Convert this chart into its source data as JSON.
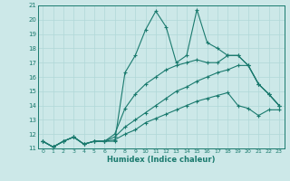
{
  "xlabel": "Humidex (Indice chaleur)",
  "ylabel": "",
  "xlim": [
    -0.5,
    23.5
  ],
  "ylim": [
    11,
    21
  ],
  "yticks": [
    11,
    12,
    13,
    14,
    15,
    16,
    17,
    18,
    19,
    20,
    21
  ],
  "xticks": [
    0,
    1,
    2,
    3,
    4,
    5,
    6,
    7,
    8,
    9,
    10,
    11,
    12,
    13,
    14,
    15,
    16,
    17,
    18,
    19,
    20,
    21,
    22,
    23
  ],
  "bg_color": "#cce8e8",
  "grid_color": "#b0d8d8",
  "line_color": "#1a7a6e",
  "lines": [
    {
      "x": [
        0,
        1,
        2,
        3,
        4,
        5,
        6,
        7,
        8,
        9,
        10,
        11,
        12,
        13,
        14,
        15,
        16,
        17,
        18,
        19,
        20,
        21,
        22,
        23
      ],
      "y": [
        11.5,
        11.1,
        11.5,
        11.8,
        11.3,
        11.5,
        11.5,
        11.5,
        16.3,
        17.5,
        19.3,
        20.6,
        19.5,
        17.0,
        17.5,
        20.7,
        18.4,
        18.0,
        17.5,
        17.5,
        16.8,
        15.5,
        14.8,
        14.0
      ]
    },
    {
      "x": [
        0,
        1,
        2,
        3,
        4,
        5,
        6,
        7,
        8,
        9,
        10,
        11,
        12,
        13,
        14,
        15,
        16,
        17,
        18,
        19,
        20,
        21,
        22,
        23
      ],
      "y": [
        11.5,
        11.1,
        11.5,
        11.8,
        11.3,
        11.5,
        11.5,
        12.0,
        13.8,
        14.8,
        15.5,
        16.0,
        16.5,
        16.8,
        17.0,
        17.2,
        17.0,
        17.0,
        17.5,
        17.5,
        16.8,
        15.5,
        14.8,
        14.0
      ]
    },
    {
      "x": [
        0,
        1,
        2,
        3,
        4,
        5,
        6,
        7,
        8,
        9,
        10,
        11,
        12,
        13,
        14,
        15,
        16,
        17,
        18,
        19,
        20,
        21,
        22,
        23
      ],
      "y": [
        11.5,
        11.1,
        11.5,
        11.8,
        11.3,
        11.5,
        11.5,
        11.8,
        12.5,
        13.0,
        13.5,
        14.0,
        14.5,
        15.0,
        15.3,
        15.7,
        16.0,
        16.3,
        16.5,
        16.8,
        16.8,
        15.5,
        14.8,
        14.0
      ]
    },
    {
      "x": [
        0,
        1,
        2,
        3,
        4,
        5,
        6,
        7,
        8,
        9,
        10,
        11,
        12,
        13,
        14,
        15,
        16,
        17,
        18,
        19,
        20,
        21,
        22,
        23
      ],
      "y": [
        11.5,
        11.1,
        11.5,
        11.8,
        11.3,
        11.5,
        11.5,
        11.6,
        12.0,
        12.3,
        12.8,
        13.1,
        13.4,
        13.7,
        14.0,
        14.3,
        14.5,
        14.7,
        14.9,
        14.0,
        13.8,
        13.3,
        13.7,
        13.7
      ]
    }
  ]
}
